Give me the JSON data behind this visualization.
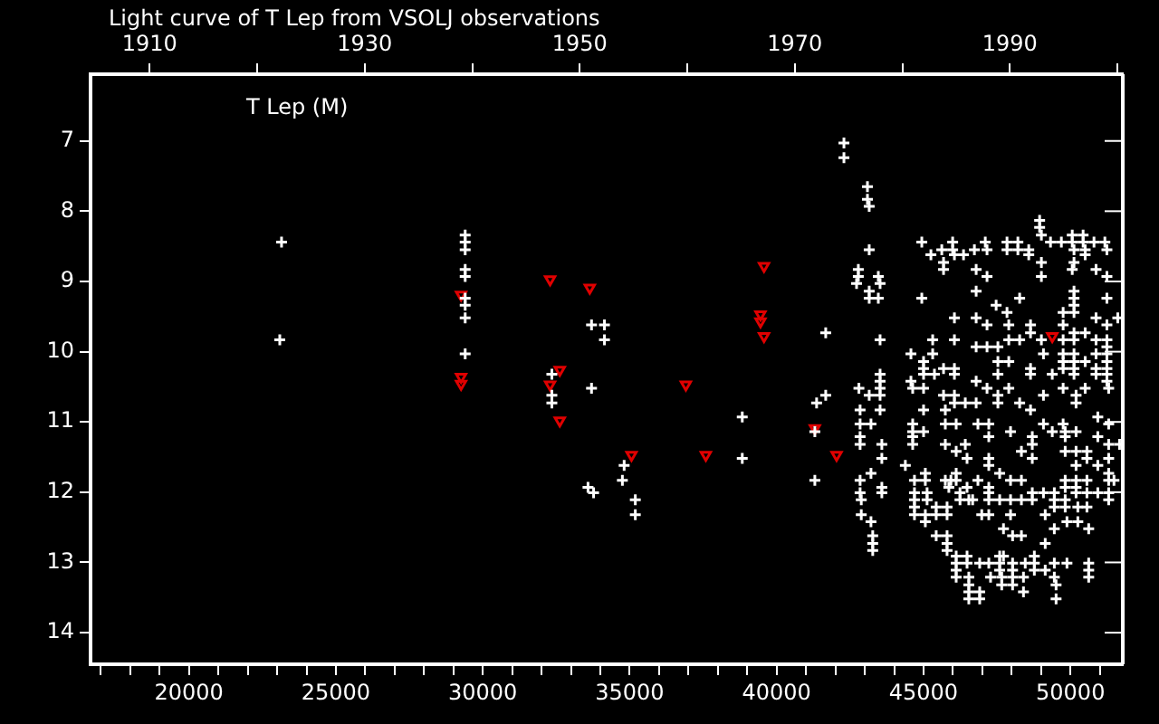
{
  "chart_data": {
    "type": "scatter",
    "title": "Light curve of T Lep from VSOLJ observations",
    "annotations": [
      "T Lep (M)"
    ],
    "xlim": [
      16650,
      51780
    ],
    "xticks": [
      {
        "value": 17000,
        "label": null
      },
      {
        "value": 18000,
        "label": null
      },
      {
        "value": 19000,
        "label": null
      },
      20000,
      {
        "value": 21000,
        "label": null
      },
      {
        "value": 22000,
        "label": null
      },
      {
        "value": 23000,
        "label": null
      },
      {
        "value": 24000,
        "label": null
      },
      25000,
      {
        "value": 26000,
        "label": null
      },
      {
        "value": 27000,
        "label": null
      },
      {
        "value": 28000,
        "label": null
      },
      {
        "value": 29000,
        "label": null
      },
      30000,
      {
        "value": 31000,
        "label": null
      },
      {
        "value": 32000,
        "label": null
      },
      {
        "value": 33000,
        "label": null
      },
      {
        "value": 34000,
        "label": null
      },
      35000,
      {
        "value": 36000,
        "label": null
      },
      {
        "value": 37000,
        "label": null
      },
      {
        "value": 38000,
        "label": null
      },
      {
        "value": 39000,
        "label": null
      },
      40000,
      {
        "value": 41000,
        "label": null
      },
      {
        "value": 42000,
        "label": null
      },
      {
        "value": 43000,
        "label": null
      },
      {
        "value": 44000,
        "label": null
      },
      45000,
      {
        "value": 46000,
        "label": null
      },
      {
        "value": 47000,
        "label": null
      },
      {
        "value": 48000,
        "label": null
      },
      {
        "value": 49000,
        "label": null
      },
      50000,
      {
        "value": 51000,
        "label": null
      }
    ],
    "x2lim": [
      1904.5,
      2000.5
    ],
    "x2ticks": [
      1910,
      {
        "value": 1920,
        "label": null
      },
      1930,
      {
        "value": 1940,
        "label": null
      },
      1950,
      {
        "value": 1960,
        "label": null
      },
      1970,
      {
        "value": 1980,
        "label": null
      },
      1990,
      {
        "value": 2000,
        "label": null
      }
    ],
    "ylim": [
      14.45,
      6.05
    ],
    "yticks": [
      7,
      8,
      9,
      10,
      11,
      12,
      13,
      14
    ],
    "grid": false,
    "series": [
      {
        "color": "#ffffff",
        "marker": "cross",
        "x": [
          23150,
          23090,
          29400,
          29400,
          29400,
          29400,
          29400,
          29400,
          29400,
          29400,
          29400,
          32350,
          32350,
          32350,
          33700,
          34140,
          34140,
          33700,
          34810,
          34750,
          33580,
          33770,
          35190,
          35190,
          38830,
          38830,
          41670,
          41360,
          41670,
          41300,
          41300,
          42290,
          42290,
          43090,
          43090,
          43150,
          43150,
          42780,
          42780,
          42720,
          43460,
          43520,
          43150,
          43150,
          43460,
          43520,
          43520,
          43520,
          43520,
          43520,
          43150,
          43520,
          42800,
          42840,
          42840,
          43210,
          42840,
          42840,
          43580,
          43580,
          43210,
          42840,
          43580,
          43580,
          42840,
          42880,
          42880,
          43210,
          43270,
          43270,
          43270,
          48950,
          48950,
          49010,
          44940,
          45990,
          47100,
          47840,
          48210,
          49320,
          49690,
          50060,
          50430,
          50060,
          50430,
          50800,
          51170,
          45250,
          45620,
          45990,
          46050,
          46360,
          46730,
          47160,
          47840,
          48210,
          48580,
          48580,
          50120,
          50500,
          50500,
          51240,
          45680,
          45680,
          46790,
          47160,
          49010,
          49010,
          50120,
          50060,
          50870,
          51240,
          44940,
          46790,
          48270,
          50120,
          50120,
          50120,
          50120,
          47470,
          47840,
          49750,
          51240,
          46050,
          46790,
          47160,
          47900,
          48640,
          48640,
          49750,
          50120,
          50500,
          50870,
          51240,
          51610,
          45310,
          46050,
          47900,
          48270,
          49010,
          49750,
          50120,
          50870,
          51240,
          44570,
          45310,
          45000,
          45000,
          45000,
          45370,
          45680,
          46050,
          46050,
          46790,
          47160,
          47530,
          47530,
          47530,
          47900,
          48640,
          48640,
          49080,
          49380,
          49750,
          49750,
          49750,
          50120,
          50120,
          50120,
          50120,
          50500,
          50870,
          50870,
          50870,
          51240,
          51240,
          51240,
          51240,
          51240,
          51240,
          51300,
          44570,
          44630,
          45000,
          46790,
          47160,
          47900,
          49750,
          50500,
          45680,
          46050,
          46050,
          46420,
          46790,
          47530,
          47530,
          48270,
          48640,
          49080,
          50190,
          50190,
          45000,
          45740,
          44630,
          44630,
          44630,
          44630,
          45000,
          45740,
          46110,
          46850,
          47220,
          47220,
          47960,
          48700,
          48700,
          49080,
          49380,
          49750,
          49820,
          49820,
          50190,
          50930,
          50930,
          51300,
          51300,
          51670,
          45740,
          46420,
          46110,
          46480,
          47220,
          47220,
          48330,
          48700,
          49820,
          50190,
          50560,
          50560,
          50190,
          50930,
          51300,
          51300,
          44380,
          45060,
          47590,
          44690,
          45060,
          45740,
          45930,
          46110,
          46110,
          46850,
          47960,
          48330,
          49820,
          49820,
          50190,
          50190,
          50560,
          51300,
          51480,
          45860,
          46480,
          47220,
          47220,
          44690,
          44690,
          44690,
          44690,
          45120,
          45120,
          46240,
          46240,
          46540,
          46670,
          47220,
          47590,
          47960,
          48330,
          48700,
          48700,
          49080,
          49450,
          49450,
          49450,
          49820,
          49820,
          50190,
          50250,
          50560,
          50560,
          50930,
          51300,
          51300,
          45430,
          45800,
          45060,
          45430,
          45800,
          46980,
          47220,
          47960,
          49140,
          45060,
          49450,
          49880,
          50250,
          50620,
          45430,
          45800,
          45800,
          45800,
          47720,
          48030,
          48330,
          49140,
          46110,
          46480,
          47590,
          47720,
          48770,
          46110,
          46480,
          46910,
          47220,
          47590,
          48030,
          48460,
          48770,
          49450,
          49880,
          50620,
          46110,
          47590,
          48030,
          48770,
          49140,
          50620,
          46110,
          46540,
          47280,
          47660,
          48030,
          48400,
          49450,
          50620,
          46540,
          47660,
          48030,
          49510,
          46540,
          46910,
          48400,
          46540,
          46910,
          49510
        ],
        "values": [
          8.44,
          9.83,
          8.34,
          8.44,
          8.55,
          8.83,
          8.93,
          9.24,
          9.34,
          9.52,
          10.03,
          10.32,
          10.62,
          10.73,
          9.62,
          9.62,
          9.83,
          10.52,
          11.62,
          11.83,
          11.93,
          12.01,
          12.11,
          12.32,
          10.93,
          11.52,
          9.73,
          10.73,
          10.62,
          11.14,
          11.83,
          7.03,
          7.24,
          7.65,
          7.83,
          7.93,
          8.55,
          8.83,
          8.93,
          9.03,
          8.93,
          9.03,
          9.14,
          9.24,
          9.24,
          9.83,
          10.32,
          10.42,
          10.52,
          10.62,
          10.62,
          10.83,
          10.52,
          10.83,
          11.03,
          11.03,
          11.21,
          11.32,
          11.32,
          11.52,
          11.73,
          11.83,
          11.93,
          12.01,
          12.01,
          12.11,
          12.32,
          12.42,
          12.62,
          12.73,
          12.83,
          8.13,
          8.23,
          8.34,
          8.44,
          8.44,
          8.44,
          8.44,
          8.44,
          8.44,
          8.44,
          8.34,
          8.34,
          8.44,
          8.44,
          8.44,
          8.44,
          8.62,
          8.55,
          8.55,
          8.62,
          8.62,
          8.55,
          8.55,
          8.55,
          8.55,
          8.55,
          8.62,
          8.55,
          8.55,
          8.62,
          8.55,
          8.73,
          8.83,
          8.83,
          8.93,
          8.73,
          8.93,
          8.73,
          8.83,
          8.83,
          8.93,
          9.24,
          9.14,
          9.24,
          9.14,
          9.24,
          9.34,
          9.44,
          9.34,
          9.44,
          9.44,
          9.24,
          9.52,
          9.52,
          9.62,
          9.62,
          9.62,
          9.73,
          9.62,
          9.73,
          9.73,
          9.52,
          9.62,
          9.52,
          9.83,
          9.83,
          9.83,
          9.83,
          9.83,
          9.83,
          9.83,
          9.83,
          9.83,
          10.03,
          10.03,
          10.14,
          10.24,
          10.32,
          10.32,
          10.24,
          10.24,
          10.32,
          9.93,
          9.93,
          9.93,
          10.14,
          10.32,
          10.14,
          10.24,
          10.32,
          10.03,
          10.32,
          10.03,
          10.14,
          10.24,
          10.03,
          10.14,
          10.24,
          10.32,
          10.14,
          10.03,
          10.24,
          10.32,
          9.93,
          10.03,
          10.14,
          10.24,
          10.32,
          10.42,
          10.52,
          10.42,
          10.52,
          10.52,
          10.42,
          10.52,
          10.52,
          10.52,
          10.52,
          10.62,
          10.62,
          10.73,
          10.73,
          10.73,
          10.62,
          10.73,
          10.73,
          10.83,
          10.62,
          10.62,
          10.73,
          10.83,
          10.83,
          11.03,
          11.14,
          11.21,
          11.32,
          11.14,
          11.03,
          11.03,
          11.03,
          11.03,
          11.21,
          11.14,
          11.21,
          11.32,
          11.03,
          11.14,
          11.03,
          11.14,
          11.21,
          11.14,
          10.93,
          11.21,
          11.03,
          11.32,
          11.32,
          11.32,
          11.32,
          11.42,
          11.52,
          11.52,
          11.62,
          11.42,
          11.52,
          11.42,
          11.42,
          11.42,
          11.52,
          11.62,
          11.62,
          11.52,
          11.73,
          11.62,
          11.73,
          11.73,
          11.83,
          11.83,
          11.83,
          11.83,
          11.73,
          11.83,
          11.83,
          11.83,
          11.83,
          11.83,
          11.93,
          11.83,
          11.93,
          11.83,
          11.83,
          11.83,
          11.93,
          11.93,
          11.93,
          12.01,
          12.01,
          12.11,
          12.21,
          12.32,
          12.01,
          12.11,
          12.01,
          12.11,
          12.11,
          12.11,
          12.11,
          12.11,
          12.11,
          12.11,
          12.01,
          12.11,
          12.01,
          12.01,
          12.11,
          12.21,
          12.11,
          12.21,
          12.01,
          12.21,
          12.01,
          12.21,
          12.01,
          12.01,
          12.11,
          12.21,
          12.21,
          12.32,
          12.32,
          12.32,
          12.32,
          12.32,
          12.32,
          12.32,
          12.42,
          12.52,
          12.42,
          12.42,
          12.52,
          12.62,
          12.62,
          12.73,
          12.83,
          12.52,
          12.62,
          12.62,
          12.73,
          12.91,
          12.91,
          12.91,
          12.91,
          12.91,
          13.01,
          13.01,
          13.01,
          13.01,
          13.01,
          13.01,
          13.01,
          13.01,
          13.01,
          13.01,
          13.01,
          13.11,
          13.11,
          13.11,
          13.11,
          13.11,
          13.11,
          13.21,
          13.21,
          13.21,
          13.21,
          13.21,
          13.21,
          13.21,
          13.21,
          13.32,
          13.32,
          13.32,
          13.32,
          13.42,
          13.42,
          13.42,
          13.52,
          13.52,
          13.52
        ]
      },
      {
        "color": "#e00000",
        "marker": "triangle",
        "x": [
          29260,
          29260,
          29260,
          32290,
          32290,
          32620,
          32620,
          33640,
          35060,
          36910,
          37590,
          39570,
          39450,
          39450,
          39570,
          41300,
          42040,
          49380
        ],
        "values": [
          9.19,
          10.36,
          10.46,
          8.97,
          10.47,
          10.26,
          10.98,
          9.09,
          11.47,
          10.47,
          11.47,
          8.78,
          9.47,
          9.57,
          9.78,
          11.09,
          11.47,
          9.78
        ]
      }
    ]
  }
}
